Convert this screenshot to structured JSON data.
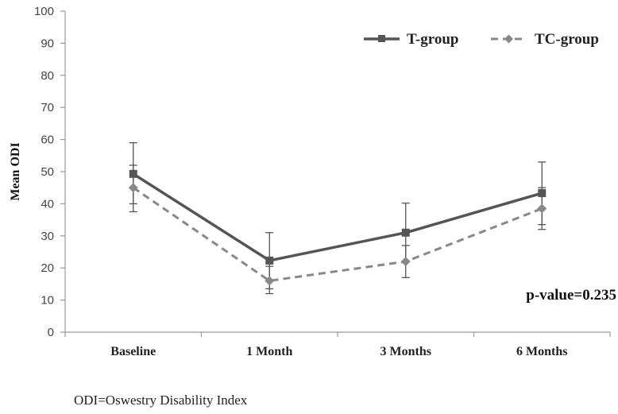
{
  "chart_data": {
    "type": "line",
    "title": "",
    "xlabel": "",
    "ylabel": "Mean ODI",
    "ylim": [
      0,
      100
    ],
    "yticks": [
      0,
      10,
      20,
      30,
      40,
      50,
      60,
      70,
      80,
      90,
      100
    ],
    "ytick_labels": [
      "0",
      "10",
      "20",
      "30",
      "40",
      "50",
      "60",
      "70",
      "80",
      "90",
      "100"
    ],
    "categories": [
      "Baseline",
      "1 Month",
      "3 Months",
      "6 Months"
    ],
    "grid": false,
    "legend_position": "top-right",
    "series": [
      {
        "name": "T-group",
        "values": [
          49.3,
          22.3,
          31.0,
          43.3
        ],
        "error_upper": [
          59.0,
          31.0,
          40.2,
          53.0
        ],
        "error_lower": [
          40.0,
          13.5,
          22.0,
          33.5
        ],
        "color": "#555555",
        "line_style": "solid",
        "marker": "square"
      },
      {
        "name": "TC-group",
        "values": [
          45.0,
          16.0,
          22.0,
          38.5
        ],
        "error_upper": [
          52.0,
          20.5,
          27.0,
          45.0
        ],
        "error_lower": [
          37.5,
          12.0,
          17.0,
          32.0
        ],
        "color": "#888888",
        "line_style": "dashed",
        "marker": "diamond"
      }
    ],
    "annotation": "p-value=0.235"
  },
  "footnote": "ODI=Oswestry Disability Index"
}
